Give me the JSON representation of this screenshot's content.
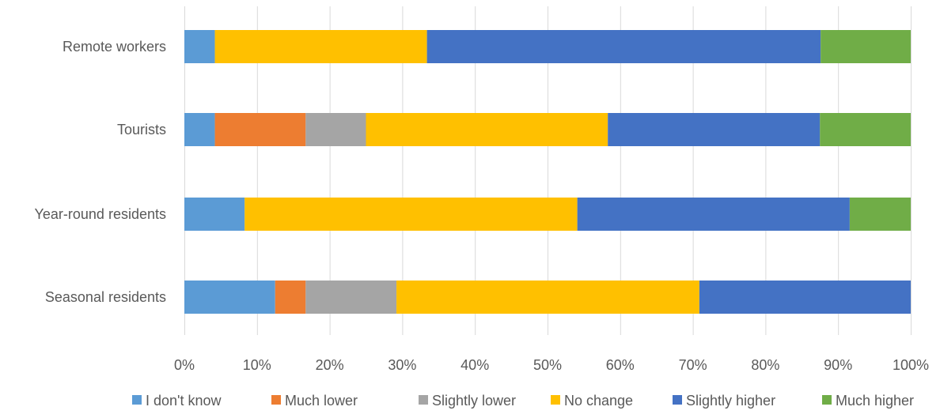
{
  "chart_data": {
    "type": "bar",
    "orientation": "horizontal",
    "stacking": "percent",
    "categories": [
      "Remote workers",
      "Tourists",
      "Year-round residents",
      "Seasonal residents"
    ],
    "series": [
      {
        "name": "I don't know",
        "color": "#5b9bd5",
        "values": [
          4.2,
          4.2,
          8.3,
          12.5
        ]
      },
      {
        "name": "Much lower",
        "color": "#ed7d31",
        "values": [
          0,
          12.5,
          0,
          4.2
        ]
      },
      {
        "name": "Slightly lower",
        "color": "#a5a5a5",
        "values": [
          0,
          8.3,
          0,
          12.5
        ]
      },
      {
        "name": "No change",
        "color": "#ffc000",
        "values": [
          29.2,
          33.3,
          45.8,
          41.7
        ]
      },
      {
        "name": "Slightly higher",
        "color": "#4472c4",
        "values": [
          54.2,
          29.2,
          37.5,
          29.1
        ]
      },
      {
        "name": "Much higher",
        "color": "#70ad47",
        "values": [
          12.4,
          12.5,
          8.4,
          0
        ]
      }
    ],
    "xlim": [
      0,
      100
    ],
    "x_ticks": [
      "0%",
      "10%",
      "20%",
      "30%",
      "40%",
      "50%",
      "60%",
      "70%",
      "80%",
      "90%",
      "100%"
    ],
    "grid": "vertical",
    "legend_position": "bottom",
    "title": "",
    "xlabel": "",
    "ylabel": ""
  }
}
